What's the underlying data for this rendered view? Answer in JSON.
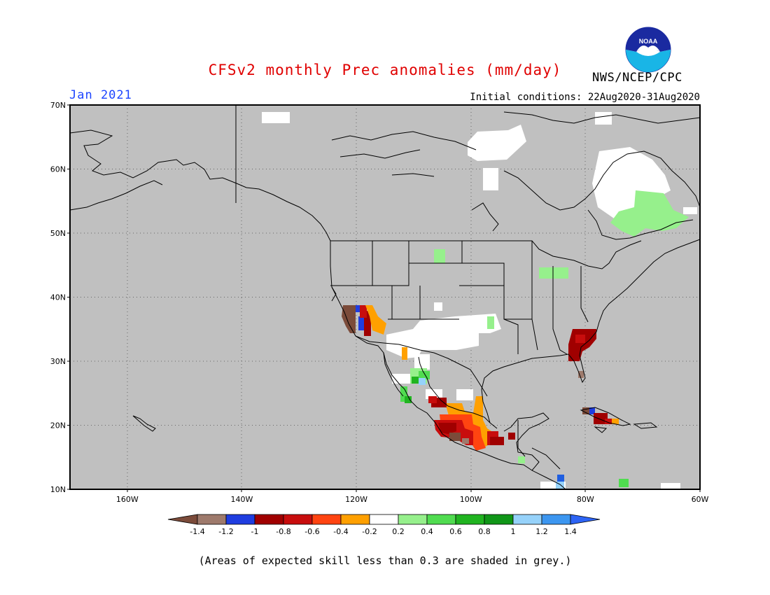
{
  "title": "CFSv2 monthly Prec anomalies (mm/day)",
  "month_label": "Jan 2021",
  "initial_conditions": "Initial conditions: 22Aug2020-31Aug2020",
  "agency": "NWS/NCEP/CPC",
  "logo_text": "NOAA",
  "footnote": "(Areas of expected skill less than 0.3 are shaded in grey.)",
  "map": {
    "lon_range": [
      -170,
      -60
    ],
    "lat_range": [
      10,
      70
    ],
    "lat_ticks": [
      {
        "value": 70,
        "label": "70N"
      },
      {
        "value": 60,
        "label": "60N"
      },
      {
        "value": 50,
        "label": "50N"
      },
      {
        "value": 40,
        "label": "40N"
      },
      {
        "value": 30,
        "label": "30N"
      },
      {
        "value": 20,
        "label": "20N"
      },
      {
        "value": 10,
        "label": "10N"
      }
    ],
    "lon_ticks": [
      {
        "value": -160,
        "label": "160W"
      },
      {
        "value": -140,
        "label": "140W"
      },
      {
        "value": -120,
        "label": "120W"
      },
      {
        "value": -100,
        "label": "100W"
      },
      {
        "value": -80,
        "label": "80W"
      },
      {
        "value": -60,
        "label": "60W"
      }
    ],
    "colors": {
      "skill_grey": "#c0c0c0",
      "border": "#000000"
    }
  },
  "colorbar": {
    "labels": [
      "-1.4",
      "-1.2",
      "-1",
      "-0.8",
      "-0.6",
      "-0.4",
      "-0.2",
      "0.2",
      "0.4",
      "0.6",
      "0.8",
      "1",
      "1.2",
      "1.4"
    ],
    "bins": [
      {
        "color": "#7b4b3a"
      },
      {
        "color": "#9e7a6c"
      },
      {
        "color": "#1f3de0"
      },
      {
        "color": "#a00000"
      },
      {
        "color": "#c80d0d"
      },
      {
        "color": "#ff4411"
      },
      {
        "color": "#ffa000"
      },
      {
        "color": "#ffffff"
      },
      {
        "color": "#96f08c"
      },
      {
        "color": "#50dc50"
      },
      {
        "color": "#20b420"
      },
      {
        "color": "#109618"
      },
      {
        "color": "#96d2fa"
      },
      {
        "color": "#3c96f0"
      },
      {
        "color": "#2d64f5"
      }
    ]
  }
}
